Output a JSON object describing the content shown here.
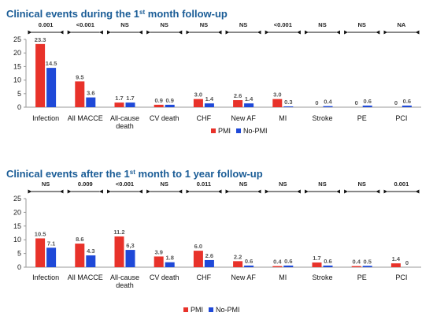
{
  "colors": {
    "pmi": "#e8322a",
    "nopmi": "#1f49d8",
    "arrow": "#111111",
    "axis": "#999999",
    "title": "#1a5c96"
  },
  "chart_data": [
    {
      "type": "bar",
      "title_main": "Clinical events during the 1",
      "title_sup": "st",
      "title_tail": " month follow-up",
      "categories": [
        "Infection",
        "All MACCE",
        "All-cause death",
        "CV death",
        "CHF",
        "New AF",
        "MI",
        "Stroke",
        "PE",
        "PCI"
      ],
      "category_lines": [
        [
          "Infection"
        ],
        [
          "All MACCE"
        ],
        [
          "All-cause",
          "death"
        ],
        [
          "CV death"
        ],
        [
          "CHF"
        ],
        [
          "New AF"
        ],
        [
          "MI"
        ],
        [
          "Stroke"
        ],
        [
          "PE"
        ],
        [
          "PCI"
        ]
      ],
      "pvalues": [
        "0.001",
        "<0.001",
        "NS",
        "NS",
        "NS",
        "NS",
        "<0.001",
        "NS",
        "NS",
        "NA"
      ],
      "series": [
        {
          "name": "PMI",
          "values": [
            23.3,
            9.5,
            1.7,
            0.9,
            3.0,
            2.6,
            3.0,
            0,
            0,
            0
          ],
          "labels": [
            "23.3",
            "9.5",
            "1.7",
            "0.9",
            "3.0",
            "2.6",
            "3.0",
            "0",
            "0",
            "0"
          ]
        },
        {
          "name": "No-PMI",
          "values": [
            14.5,
            3.6,
            1.7,
            0.9,
            1.4,
            1.4,
            0.3,
            0.4,
            0.6,
            0.6
          ],
          "labels": [
            "14.5",
            "3.6",
            "1.7",
            "0.9",
            "1.4",
            "1.4",
            "0.3",
            "0.4",
            "0.6",
            "0.6"
          ]
        }
      ],
      "ylim": [
        0,
        25
      ],
      "yticks": [
        0,
        5,
        10,
        15,
        20,
        25
      ],
      "ytick_labels": [
        "0",
        "5",
        "10",
        "15",
        "20",
        "25"
      ],
      "grid": false,
      "legend": "bottom-right"
    },
    {
      "type": "bar",
      "title_main": "Clinical events after the 1",
      "title_sup": "st",
      "title_tail": " month to 1 year follow-up",
      "categories": [
        "Infection",
        "All MACCE",
        "All-cause death",
        "CV death",
        "CHF",
        "New AF",
        "MI",
        "Stroke",
        "PE",
        "PCI"
      ],
      "category_lines": [
        [
          "Infection"
        ],
        [
          "All MACCE"
        ],
        [
          "All-cause",
          "death"
        ],
        [
          "CV death"
        ],
        [
          "CHF"
        ],
        [
          "New AF"
        ],
        [
          "MI"
        ],
        [
          "Stroke"
        ],
        [
          "PE"
        ],
        [
          "PCI"
        ]
      ],
      "pvalues": [
        "NS",
        "0.009",
        "<0.001",
        "NS",
        "0.011",
        "NS",
        "NS",
        "NS",
        "NS",
        "0.001"
      ],
      "series": [
        {
          "name": "PMI",
          "values": [
            10.5,
            8.6,
            11.2,
            3.9,
            6.0,
            2.2,
            0.4,
            1.7,
            0.4,
            1.4
          ],
          "labels": [
            "10.5",
            "8.6",
            "11.2",
            "3.9",
            "6.0",
            "2.2",
            "0.4",
            "1.7",
            "0.4",
            "1.4"
          ]
        },
        {
          "name": "No-PMI",
          "values": [
            7.1,
            4.3,
            6.3,
            1.8,
            2.6,
            0.6,
            0.6,
            0.6,
            0.5,
            0
          ],
          "labels": [
            "7.1",
            "4.3",
            "6,3",
            "1.8",
            "2.6",
            "0.6",
            "0.6",
            "0.6",
            "0.5",
            "0"
          ]
        }
      ],
      "ylim": [
        0,
        25
      ],
      "yticks": [
        0,
        5,
        10,
        15,
        20,
        25
      ],
      "ytick_labels": [
        "0",
        "5",
        "10",
        "15",
        "20",
        "25"
      ],
      "grid": false,
      "legend": "bottom-center"
    }
  ]
}
